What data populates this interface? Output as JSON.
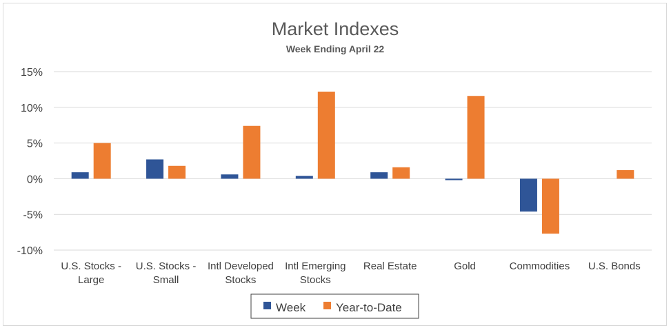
{
  "chart_data": {
    "type": "bar",
    "title": "Market Indexes",
    "subtitle": "Week Ending April 22",
    "categories": [
      [
        "U.S. Stocks -",
        "Large"
      ],
      [
        "U.S. Stocks -",
        "Small"
      ],
      [
        "Intl Developed",
        "Stocks"
      ],
      [
        "Intl Emerging",
        "Stocks"
      ],
      [
        "Real Estate"
      ],
      [
        "Gold"
      ],
      [
        "Commodities"
      ],
      [
        "U.S. Bonds"
      ]
    ],
    "series": [
      {
        "name": "Week",
        "color": "#2f5597",
        "values": [
          0.9,
          2.7,
          0.6,
          0.4,
          0.9,
          -0.2,
          -4.6,
          0.0
        ]
      },
      {
        "name": "Year-to-Date",
        "color": "#ed7d31",
        "values": [
          5.0,
          1.8,
          7.4,
          12.2,
          1.6,
          11.6,
          -7.7,
          1.2
        ]
      }
    ],
    "ylim": [
      -10,
      15
    ],
    "yticks": [
      -10,
      -5,
      0,
      5,
      10,
      15
    ],
    "ytick_labels": [
      "-10%",
      "-5%",
      "0%",
      "5%",
      "10%",
      "15%"
    ],
    "grid": true,
    "legend": "bottom"
  }
}
